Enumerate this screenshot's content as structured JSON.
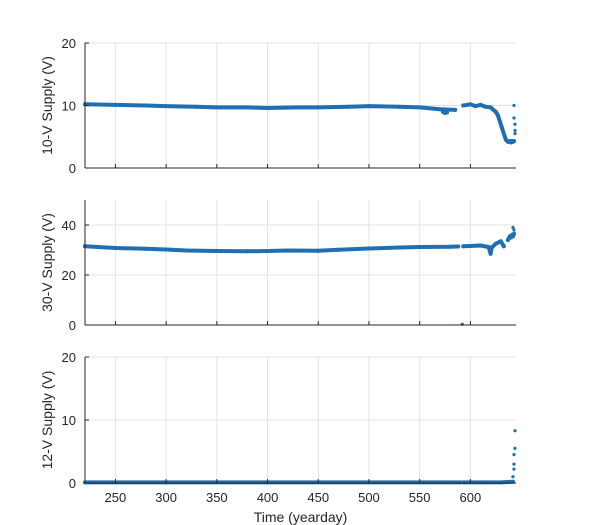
{
  "chart_data": [
    {
      "type": "scatter",
      "title": "",
      "xlabel": "",
      "ylabel": "10-V Supply (V)",
      "xlim": [
        220,
        645
      ],
      "ylim": [
        0,
        20
      ],
      "yticks": [
        0,
        10,
        20
      ],
      "xticks": [
        250,
        300,
        350,
        400,
        450,
        500,
        550,
        600
      ],
      "x_tick_labels_visible": false,
      "grid": true,
      "color": "#1f6fb2",
      "series": [
        {
          "segments": [
            {
              "x": [
                220,
                250,
                280,
                300,
                330,
                350,
                380,
                400,
                430,
                450,
                480,
                500,
                530,
                550,
                570,
                585
              ],
              "y": [
                10.2,
                10.1,
                10.0,
                9.9,
                9.8,
                9.7,
                9.7,
                9.6,
                9.7,
                9.7,
                9.8,
                9.9,
                9.8,
                9.7,
                9.4,
                9.3
              ]
            },
            {
              "x": [
                573,
                575,
                577
              ],
              "y": [
                9.0,
                8.8,
                8.9
              ]
            },
            {
              "x": [
                593,
                600,
                605,
                610,
                615,
                620,
                625,
                627,
                629,
                631,
                633,
                635,
                636
              ],
              "y": [
                10.0,
                10.2,
                9.9,
                10.1,
                9.8,
                9.7,
                9.0,
                8.5,
                7.5,
                6.5,
                5.5,
                4.5,
                4.4
              ]
            },
            {
              "x": [
                637,
                638,
                639,
                640,
                641,
                642,
                643
              ],
              "y": [
                4.2,
                4.2,
                4.3,
                4.1,
                4.3,
                4.2,
                4.3
              ]
            }
          ]
        }
      ],
      "extra_points": {
        "x": [
          643,
          643,
          644,
          644,
          644
        ],
        "y": [
          10.0,
          8.0,
          7.0,
          6.0,
          5.5
        ]
      }
    },
    {
      "type": "scatter",
      "title": "",
      "xlabel": "",
      "ylabel": "30-V Supply (V)",
      "xlim": [
        220,
        645
      ],
      "ylim": [
        0,
        50
      ],
      "yticks": [
        0,
        20,
        40
      ],
      "xticks": [
        250,
        300,
        350,
        400,
        450,
        500,
        550,
        600
      ],
      "x_tick_labels_visible": false,
      "grid": true,
      "color": "#1f6fb2",
      "series": [
        {
          "segments": [
            {
              "x": [
                220,
                250,
                280,
                300,
                320,
                350,
                380,
                400,
                420,
                450,
                470,
                500,
                530,
                550,
                580,
                588
              ],
              "y": [
                31.5,
                30.8,
                30.5,
                30.2,
                29.8,
                29.6,
                29.5,
                29.6,
                29.8,
                29.7,
                30.1,
                30.6,
                31.0,
                31.2,
                31.3,
                31.4
              ]
            },
            {
              "x": [
                593,
                600,
                610,
                618,
                620,
                621,
                625,
                630,
                633
              ],
              "y": [
                31.5,
                31.6,
                31.8,
                31.2,
                28.5,
                31.0,
                32.5,
                33.5,
                31.5
              ]
            },
            {
              "x": [
                637,
                638,
                639,
                640,
                641,
                642,
                643
              ],
              "y": [
                34.0,
                34.8,
                35.5,
                35.0,
                36.0,
                35.5,
                36.5
              ]
            }
          ]
        }
      ],
      "extra_points": {
        "x": [
          592,
          642,
          643
        ],
        "y": [
          0.3,
          39.0,
          38.0
        ]
      }
    },
    {
      "type": "scatter",
      "title": "",
      "xlabel": "Time (yearday)",
      "ylabel": "12-V Supply (V)",
      "xlim": [
        220,
        645
      ],
      "ylim": [
        0,
        20
      ],
      "yticks": [
        0,
        10,
        20
      ],
      "xticks": [
        250,
        300,
        350,
        400,
        450,
        500,
        550,
        600
      ],
      "x_tick_labels_visible": true,
      "grid": true,
      "color": "#1f6fb2",
      "series": [
        {
          "segments": [
            {
              "x": [
                220,
                300,
                400,
                500,
                590
              ],
              "y": [
                0.1,
                0.1,
                0.1,
                0.1,
                0.1
              ]
            },
            {
              "x": [
                593,
                610,
                630,
                642
              ],
              "y": [
                0.1,
                0.1,
                0.1,
                0.2
              ]
            }
          ]
        }
      ],
      "extra_points": {
        "x": [
          642,
          643,
          643,
          643,
          644,
          644
        ],
        "y": [
          1.0,
          2.2,
          3.0,
          4.5,
          5.5,
          8.3
        ]
      }
    }
  ]
}
